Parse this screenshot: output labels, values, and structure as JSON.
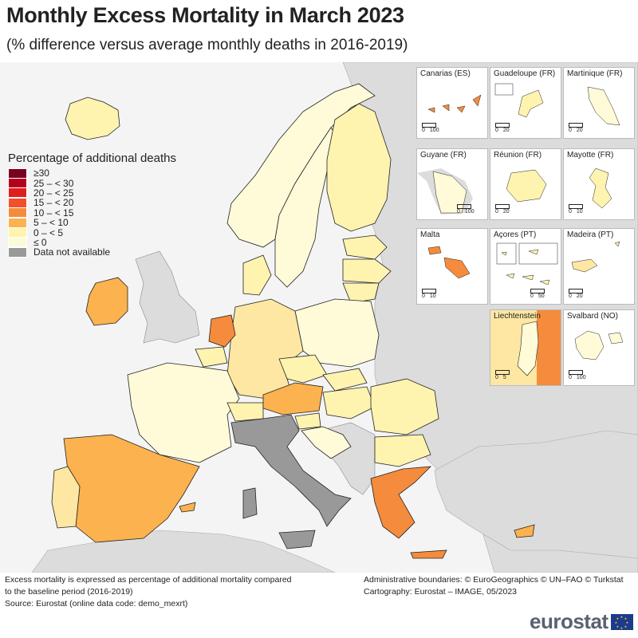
{
  "title": "Monthly Excess Mortality in March 2023",
  "subtitle": "(% difference versus average monthly deaths in 2016-2019)",
  "legend": {
    "title": "Percentage of additional deaths",
    "items": [
      {
        "label": "≥30",
        "color": "#7a0022"
      },
      {
        "label": "25 – < 30",
        "color": "#b7001d"
      },
      {
        "label": "20 – < 25",
        "color": "#e01e1e"
      },
      {
        "label": "15 – < 20",
        "color": "#f2502c"
      },
      {
        "label": "10 – < 15",
        "color": "#f58b3c"
      },
      {
        "label": "5 – < 10",
        "color": "#fbb24f"
      },
      {
        "label": "0 – < 5",
        "color": "#fff3b0"
      },
      {
        "label": "≤ 0",
        "color": "#fbfbd9"
      },
      {
        "label": "Data not available",
        "color": "#999999"
      }
    ]
  },
  "insets": [
    {
      "label": "Canarias (ES)",
      "scale": [
        "0",
        "100"
      ]
    },
    {
      "label": "Guadeloupe (FR)",
      "scale": [
        "0",
        "20"
      ]
    },
    {
      "label": "Martinique (FR)",
      "scale": [
        "0",
        "20"
      ]
    },
    {
      "label": "Guyane (FR)",
      "scale": [
        "0",
        "100"
      ]
    },
    {
      "label": "Réunion (FR)",
      "scale": [
        "0",
        "20"
      ]
    },
    {
      "label": "Mayotte (FR)",
      "scale": [
        "0",
        "10"
      ]
    },
    {
      "label": "Malta",
      "scale": [
        "0",
        "10"
      ]
    },
    {
      "label": "Açores (PT)",
      "scale": [
        "0",
        "50"
      ]
    },
    {
      "label": "Madeira (PT)",
      "scale": [
        "0",
        "20"
      ]
    },
    {
      "label": "Liechtenstein",
      "scale": [
        "0",
        "5"
      ]
    },
    {
      "label": "Svalbard (NO)",
      "scale": [
        "0",
        "100"
      ]
    }
  ],
  "footer": {
    "note_line1": "Excess mortality is expressed as percentage of additional mortality compared",
    "note_line2": "to the baseline period (2016-2019)",
    "source": "Source: Eurostat (online data code: demo_mexrt)",
    "boundaries": "Administrative boundaries: © EuroGeographics © UN–FAO © Turkstat",
    "cartography": "Cartography: Eurostat – IMAGE, 05/2023"
  },
  "logo": "eurostat",
  "colors": {
    "non_eu": "#dcdcdc",
    "sea": "#f4f4f4",
    "border": "#222222"
  }
}
